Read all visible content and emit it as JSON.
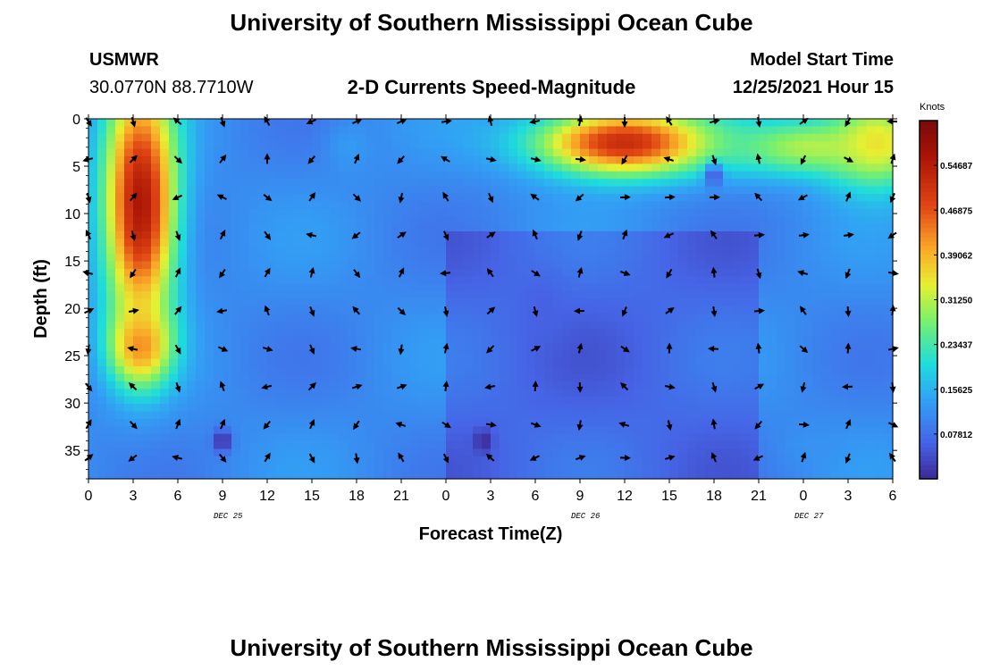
{
  "header": {
    "title": "University of Southern Mississippi Ocean Cube",
    "station": "USMWR",
    "coords": "30.0770N  88.7710W",
    "subtitle": "2-D Currents Speed-Magnitude",
    "model_label": "Model Start Time",
    "model_time": "12/25/2021 Hour 15"
  },
  "footer": {
    "title": "University of Southern Mississippi Ocean Cube"
  },
  "chart_data": {
    "type": "heatmap",
    "xlabel": "Forecast Time(Z)",
    "ylabel": "Depth (ft)",
    "x_ticks": [
      "0",
      "3",
      "6",
      "9",
      "12",
      "15",
      "18",
      "21",
      "0",
      "3",
      "6",
      "9",
      "12",
      "15",
      "18",
      "21",
      "0",
      "3",
      "6"
    ],
    "date_labels": [
      {
        "tick_index": 3,
        "text": "DEC 25"
      },
      {
        "tick_index": 11,
        "text": "DEC 26"
      },
      {
        "tick_index": 16,
        "text": "DEC 27"
      }
    ],
    "y_ticks": [
      0,
      5,
      10,
      15,
      20,
      25,
      30,
      35
    ],
    "ylim": [
      0,
      38
    ],
    "x_range_hours": [
      0,
      54
    ],
    "colorbar": {
      "unit": "Knots",
      "labels": [
        "0.54687",
        "0.46875",
        "0.39062",
        "0.31250",
        "0.23437",
        "0.15625",
        "0.07812"
      ],
      "values": [
        0.54687,
        0.46875,
        0.39062,
        0.3125,
        0.23437,
        0.15625,
        0.07812
      ],
      "range": [
        0,
        0.625
      ]
    },
    "speed_blobs": [
      {
        "x": 3.5,
        "y": 9,
        "sx": 2.4,
        "sy": 13,
        "v": 0.56
      },
      {
        "x": 3.5,
        "y": 24,
        "sx": 2.0,
        "sy": 4,
        "v": 0.42
      },
      {
        "x": 17.5,
        "y": 3,
        "sx": 1.6,
        "sy": 3,
        "v": 0.13
      },
      {
        "x": 36,
        "y": 2.5,
        "sx": 6,
        "sy": 3.5,
        "v": 0.52
      },
      {
        "x": 48,
        "y": 3,
        "sx": 5,
        "sy": 3,
        "v": 0.3
      },
      {
        "x": 53,
        "y": 2.5,
        "sx": 3.5,
        "sy": 5,
        "v": 0.35
      },
      {
        "x": 48.5,
        "y": 34.5,
        "sx": 2,
        "sy": 2,
        "v": 0.12
      },
      {
        "x": 30.5,
        "y": 20,
        "sx": 1.5,
        "sy": 4,
        "v": 0.06
      }
    ],
    "slow_spots": [
      {
        "x": 9,
        "y": 34,
        "v": 0.0
      },
      {
        "x": 26.5,
        "y": 34,
        "v": 0.0
      },
      {
        "x": 42,
        "y": 6,
        "v": 0.04
      }
    ],
    "arrow_grid": {
      "x_step_hours": 3,
      "depths_ft": [
        0,
        4,
        8,
        12,
        16,
        20,
        24,
        28,
        32,
        35.5
      ],
      "direction_note": "current direction vectors per grid cell"
    },
    "grid": false
  }
}
